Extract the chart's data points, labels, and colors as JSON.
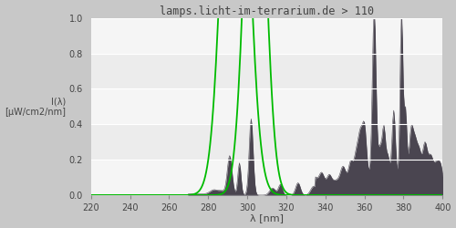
{
  "title": "lamps.licht-im-terrarium.de > 110",
  "xlabel": "λ [nm]",
  "ylabel": "I(λ)\n[µW/cm2/nm]",
  "xlim": [
    220,
    400
  ],
  "ylim": [
    0,
    1.0
  ],
  "xticks": [
    220,
    240,
    260,
    280,
    300,
    320,
    340,
    360,
    380,
    400
  ],
  "yticks": [
    0.0,
    0.2,
    0.4,
    0.6,
    0.8,
    1.0
  ],
  "spectrum_color": "#4a4550",
  "green_line_color": "#00bb00",
  "title_color": "#444444",
  "tick_color": "#444444",
  "fig_bg": "#c8c8c8",
  "ax_bg": "#ececec",
  "band_color": "#e0e0e0"
}
